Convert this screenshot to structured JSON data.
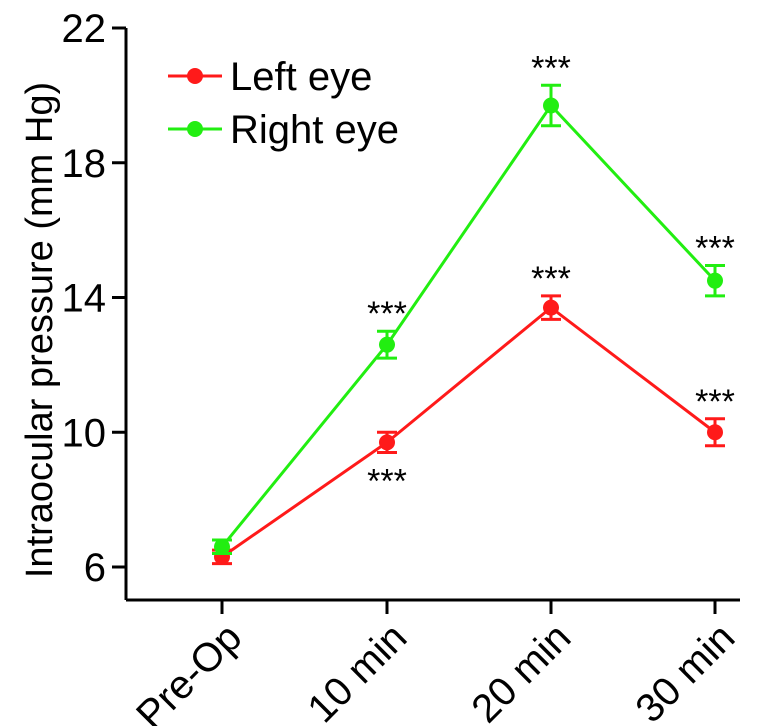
{
  "chart_data": {
    "type": "line",
    "title": "",
    "xlabel": "",
    "ylabel": "Intraocular pressure (mm Hg)",
    "categories": [
      "Pre-Op",
      "10 min",
      "20 min",
      "30 min"
    ],
    "ylim": [
      5,
      22
    ],
    "yticks": [
      6,
      10,
      14,
      18,
      22
    ],
    "legend_position": "top-left",
    "series": [
      {
        "name": "Left eye",
        "color": "#ff1a1a",
        "values": [
          6.3,
          9.7,
          13.7,
          10.0
        ],
        "errors": [
          0.2,
          0.3,
          0.35,
          0.4
        ],
        "annotations": [
          "",
          "***",
          "***",
          "***"
        ],
        "annotation_side": [
          "",
          "below",
          "above",
          "above"
        ]
      },
      {
        "name": "Right eye",
        "color": "#22ee11",
        "values": [
          6.6,
          12.6,
          19.7,
          14.5
        ],
        "errors": [
          0.2,
          0.4,
          0.6,
          0.45
        ],
        "annotations": [
          "",
          "***",
          "***",
          "***"
        ],
        "annotation_side": [
          "",
          "above",
          "above",
          "above"
        ]
      }
    ]
  }
}
